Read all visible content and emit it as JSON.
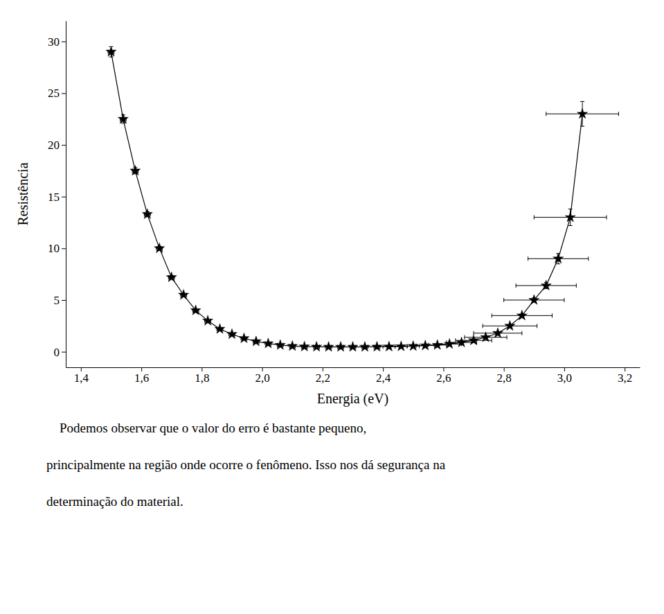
{
  "chart_data": {
    "type": "line",
    "x": [
      1.5,
      1.54,
      1.58,
      1.62,
      1.66,
      1.7,
      1.74,
      1.78,
      1.82,
      1.86,
      1.9,
      1.94,
      1.98,
      2.02,
      2.06,
      2.1,
      2.14,
      2.18,
      2.22,
      2.26,
      2.3,
      2.34,
      2.38,
      2.42,
      2.46,
      2.5,
      2.54,
      2.58,
      2.62,
      2.66,
      2.7,
      2.74,
      2.78,
      2.82,
      2.86,
      2.9,
      2.94,
      2.98,
      3.02,
      3.06
    ],
    "values": [
      29.0,
      22.5,
      17.5,
      13.3,
      10.0,
      7.2,
      5.5,
      4.0,
      3.0,
      2.2,
      1.7,
      1.3,
      1.0,
      0.8,
      0.65,
      0.55,
      0.5,
      0.48,
      0.47,
      0.47,
      0.47,
      0.47,
      0.48,
      0.5,
      0.52,
      0.55,
      0.6,
      0.65,
      0.75,
      0.9,
      1.1,
      1.4,
      1.8,
      2.5,
      3.5,
      5.0,
      6.4,
      9.0,
      13.0,
      23.0
    ],
    "xerr": [
      0.01,
      0.01,
      0.01,
      0.01,
      0.01,
      0.01,
      0.01,
      0.01,
      0.01,
      0.01,
      0.01,
      0.01,
      0.01,
      0.01,
      0.01,
      0.01,
      0.01,
      0.01,
      0.01,
      0.01,
      0.01,
      0.01,
      0.01,
      0.02,
      0.02,
      0.02,
      0.03,
      0.03,
      0.04,
      0.05,
      0.06,
      0.07,
      0.08,
      0.09,
      0.1,
      0.1,
      0.1,
      0.1,
      0.12,
      0.12
    ],
    "yerr": [
      0.5,
      0.4,
      0.3,
      0.25,
      0.2,
      0.15,
      0.12,
      0.1,
      0.08,
      0.06,
      0.05,
      0.04,
      0.03,
      0.02,
      0.02,
      0.01,
      0.01,
      0.01,
      0.01,
      0.01,
      0.01,
      0.01,
      0.01,
      0.01,
      0.01,
      0.01,
      0.01,
      0.01,
      0.02,
      0.02,
      0.03,
      0.05,
      0.07,
      0.1,
      0.15,
      0.2,
      0.3,
      0.5,
      0.8,
      1.2
    ],
    "x_label": "Energia (eV)",
    "y_label": "Resistência",
    "xlim": [
      1.35,
      3.25
    ],
    "ylim": [
      -1.5,
      32.0
    ],
    "xticks": [
      {
        "value": 1.4,
        "label": "1,4"
      },
      {
        "value": 1.6,
        "label": "1,6"
      },
      {
        "value": 1.8,
        "label": "1,8"
      },
      {
        "value": 2.0,
        "label": "2,0"
      },
      {
        "value": 2.2,
        "label": "2,2"
      },
      {
        "value": 2.4,
        "label": "2,4"
      },
      {
        "value": 2.6,
        "label": "2,6"
      },
      {
        "value": 2.8,
        "label": "2,8"
      },
      {
        "value": 3.0,
        "label": "3,0"
      },
      {
        "value": 3.2,
        "label": "3,2"
      }
    ],
    "yticks": [
      0,
      5,
      10,
      15,
      20,
      25,
      30
    ],
    "annotations": [
      "    Podemos observar que o valor do erro é bastante pequeno,",
      "principalmente na região onde ocorre o fenômeno. Isso nos dá segurança na",
      "determinação do material."
    ],
    "color": "#000000",
    "marker": "star",
    "line_style": "solid",
    "grid": false
  }
}
